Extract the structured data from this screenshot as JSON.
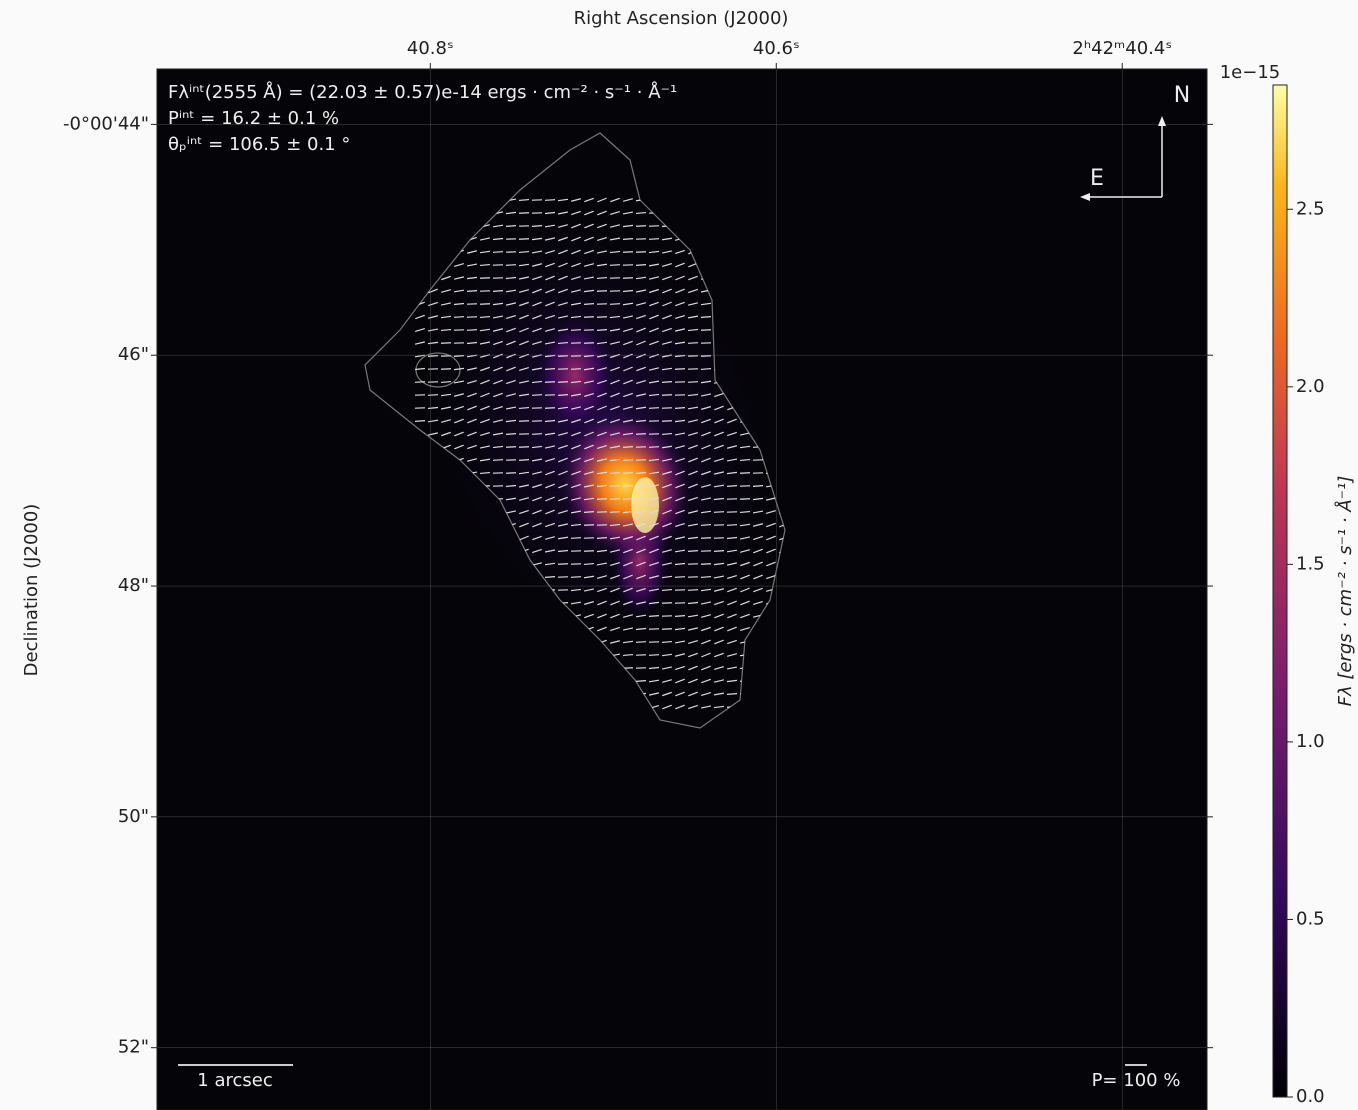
{
  "chart_data": {
    "type": "image",
    "xlabel": "Right Ascension (J2000)",
    "ylabel": "Declination (J2000)",
    "xlim": [
      40.958,
      40.351
    ],
    "xticks": [
      {
        "value": 40.8,
        "label": "40.8ˢ"
      },
      {
        "value": 40.6,
        "label": "40.6ˢ"
      },
      {
        "value": 40.4,
        "label": "2ʰ42ᵐ40.4ˢ"
      }
    ],
    "ylim": [
      -52.54,
      -43.52
    ],
    "yticks": [
      {
        "value": -44,
        "label": "-0°00'44\""
      },
      {
        "value": -46,
        "label": "46\""
      },
      {
        "value": -48,
        "label": "48\""
      },
      {
        "value": -50,
        "label": "50\""
      },
      {
        "value": -52,
        "label": "52\""
      }
    ],
    "grid": true,
    "annotations": [
      "Fλⁱⁿᵗ(2555 Å) = (22.03 ± 0.57)e-14 ergs · cm⁻² · s⁻¹ · Å⁻¹",
      "Pⁱⁿᵗ = 16.2 ± 0.1 %",
      "θₚⁱⁿᵗ = 106.5 ± 0.1 °"
    ],
    "compass": {
      "north": "N",
      "east": "E"
    },
    "scale_bar": "1 arcsec",
    "vector_scale": "P= 100 %",
    "colorbar": {
      "label": "Fλ [ergs · cm⁻² · s⁻¹ · Å⁻¹]",
      "offset_label": "1e−15",
      "lim": [
        0,
        2.85
      ],
      "ticks": [
        {
          "value": 0,
          "label": "0.0"
        },
        0.5,
        {
          "value": 1,
          "label": "1.0"
        },
        1.5,
        {
          "value": 2,
          "label": "2.0"
        },
        2.5
      ]
    }
  }
}
